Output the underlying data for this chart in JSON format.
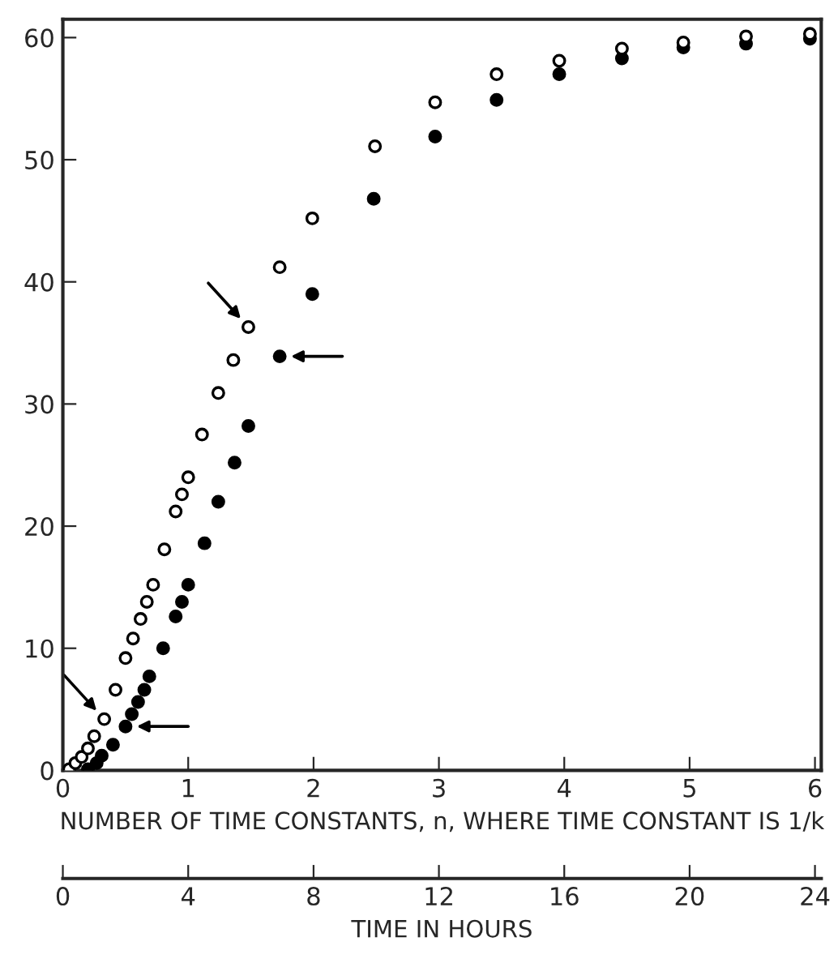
{
  "chart_data": {
    "type": "scatter",
    "xlabel": "NUMBER OF TIME CONSTANTS, n, WHERE TIME CONSTANT IS 1/k",
    "x2label": "TIME IN HOURS",
    "series": [
      {
        "color": "#ffffff",
        "x": [
          0.05,
          0.1,
          0.15,
          0.2,
          0.25,
          0.33,
          0.42,
          0.5,
          0.56,
          0.62,
          0.67,
          0.72,
          0.81,
          0.9,
          0.95,
          1.0,
          1.11,
          1.24,
          1.36,
          1.48,
          1.73,
          1.99,
          2.49,
          2.97,
          3.46,
          3.96,
          4.46,
          4.95,
          5.45,
          5.96
        ],
        "values": [
          0.1,
          0.6,
          1.1,
          1.8,
          2.8,
          4.2,
          6.6,
          9.2,
          10.8,
          12.4,
          13.8,
          15.2,
          18.1,
          21.2,
          22.6,
          24.0,
          27.5,
          30.9,
          33.6,
          36.3,
          41.2,
          45.2,
          51.1,
          54.7,
          57.0,
          58.1,
          59.1,
          59.6,
          60.1,
          60.3
        ]
      },
      {
        "color": "#000000",
        "x": [
          0.2,
          0.27,
          0.31,
          0.4,
          0.5,
          0.55,
          0.6,
          0.65,
          0.69,
          0.8,
          0.9,
          0.95,
          1.0,
          1.13,
          1.24,
          1.37,
          1.48,
          1.73,
          1.99,
          2.48,
          2.97,
          3.46,
          3.96,
          4.46,
          4.95,
          5.45,
          5.96
        ],
        "values": [
          0.1,
          0.6,
          1.2,
          2.1,
          3.6,
          4.6,
          5.6,
          6.6,
          7.7,
          10.0,
          12.6,
          13.8,
          15.2,
          18.6,
          22.0,
          25.2,
          28.2,
          33.9,
          39.0,
          46.8,
          51.9,
          54.9,
          57.0,
          58.3,
          59.2,
          59.5,
          59.9
        ]
      }
    ],
    "xlim": [
      0,
      6.05
    ],
    "xticks": [
      0,
      1,
      2,
      3,
      4,
      5,
      6
    ],
    "ylim": [
      0,
      61.5
    ],
    "yticks": [
      0,
      10,
      20,
      30,
      40,
      50,
      60
    ],
    "x2lim": [
      0,
      24.2
    ],
    "x2ticks": [
      0,
      4,
      8,
      12,
      16,
      20,
      24
    ],
    "marker": "circle",
    "grid": false,
    "legend": false
  }
}
